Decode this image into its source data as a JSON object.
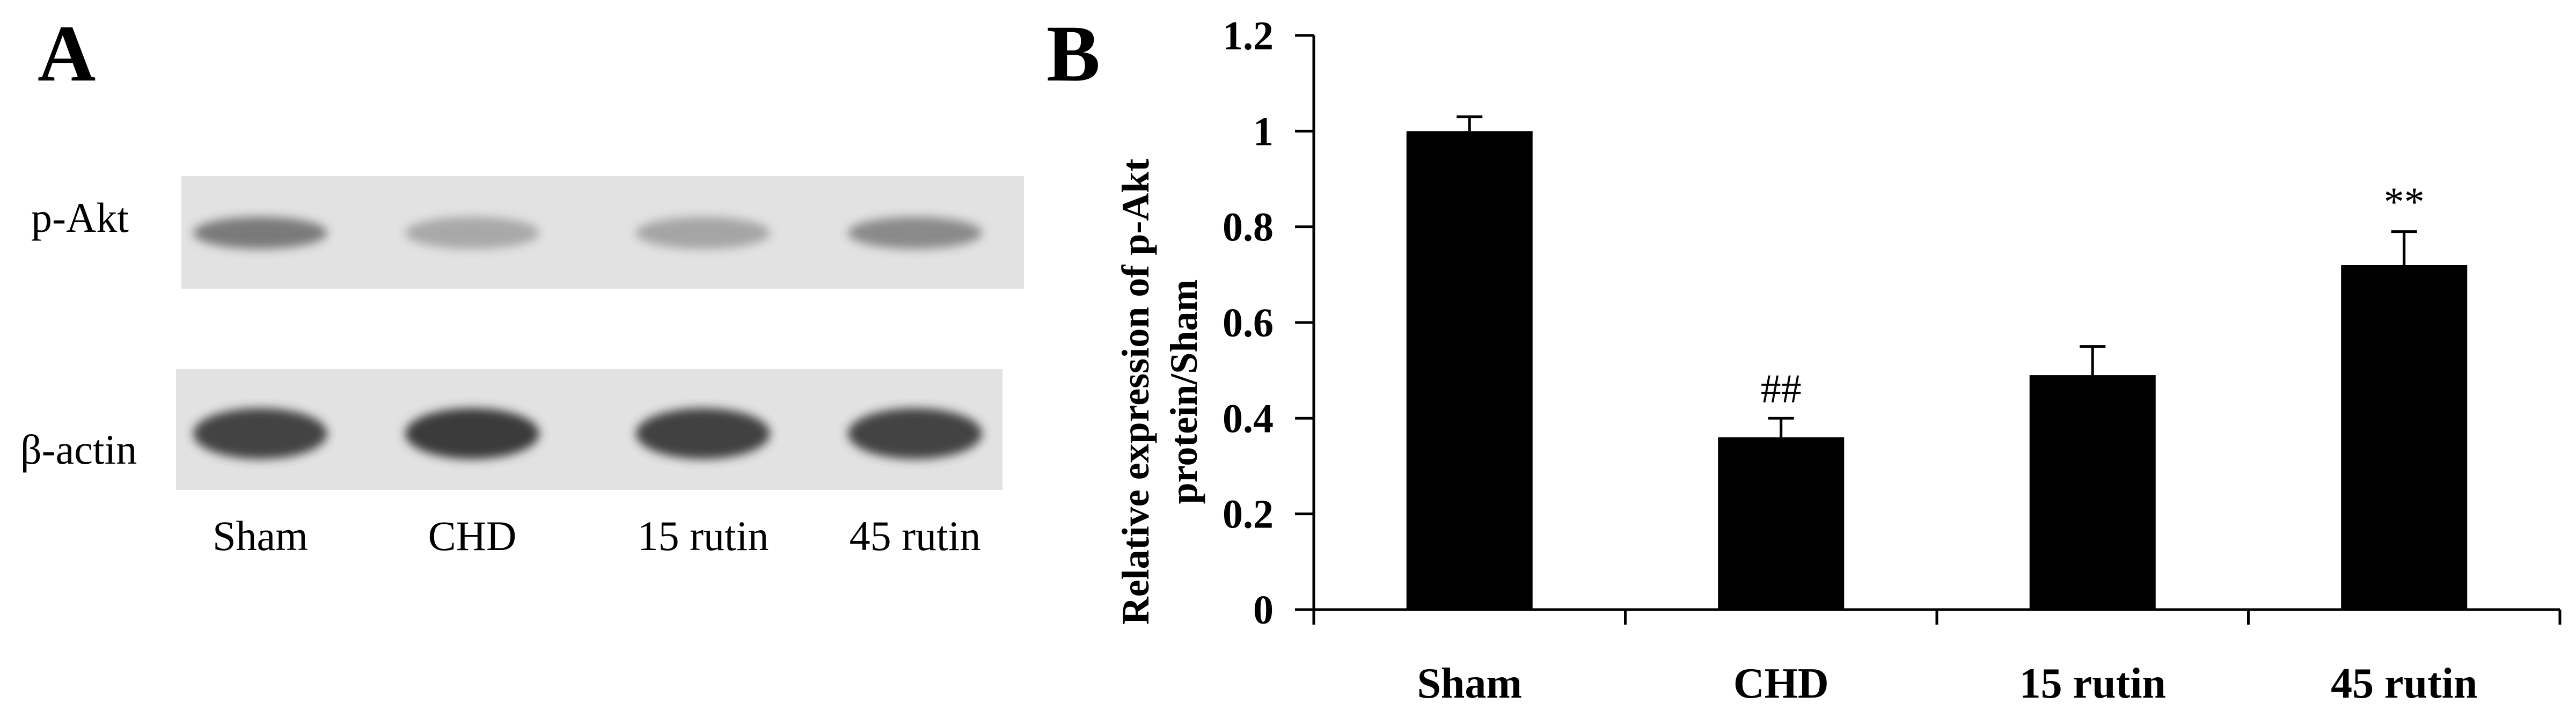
{
  "panel_a": {
    "letter": "A",
    "rows": [
      {
        "label": "p-Akt",
        "band_intensity": [
          0.62,
          0.34,
          0.36,
          0.52
        ]
      },
      {
        "label": "β-actin",
        "band_intensity": [
          0.95,
          1.0,
          0.96,
          0.95
        ]
      }
    ],
    "lanes": [
      "Sham",
      "CHD",
      "15 rutin",
      "45 rutin"
    ]
  },
  "colors": {
    "bar": "#000000",
    "blot_background": "#e2e2e2",
    "band": "#3a3a3a"
  },
  "chart_data": {
    "type": "bar",
    "panel_letter": "B",
    "categories": [
      "Sham",
      "CHD",
      "15 rutin",
      "45 rutin"
    ],
    "values": [
      1.0,
      0.36,
      0.49,
      0.72
    ],
    "errors": [
      0.03,
      0.04,
      0.06,
      0.07
    ],
    "annotations": [
      "",
      "##",
      "",
      "**"
    ],
    "ylabel_line1": "Relative expression of p-Akt",
    "ylabel_line2": "protein/Sham",
    "xlabel": "",
    "ylim": [
      0,
      1.2
    ],
    "yticks": [
      0,
      0.2,
      0.4,
      0.6,
      0.8,
      1,
      1.2
    ],
    "ytick_labels": [
      "0",
      "0.2",
      "0.4",
      "0.6",
      "0.8",
      "1",
      "1.2"
    ],
    "grid": false,
    "legend": "none"
  }
}
